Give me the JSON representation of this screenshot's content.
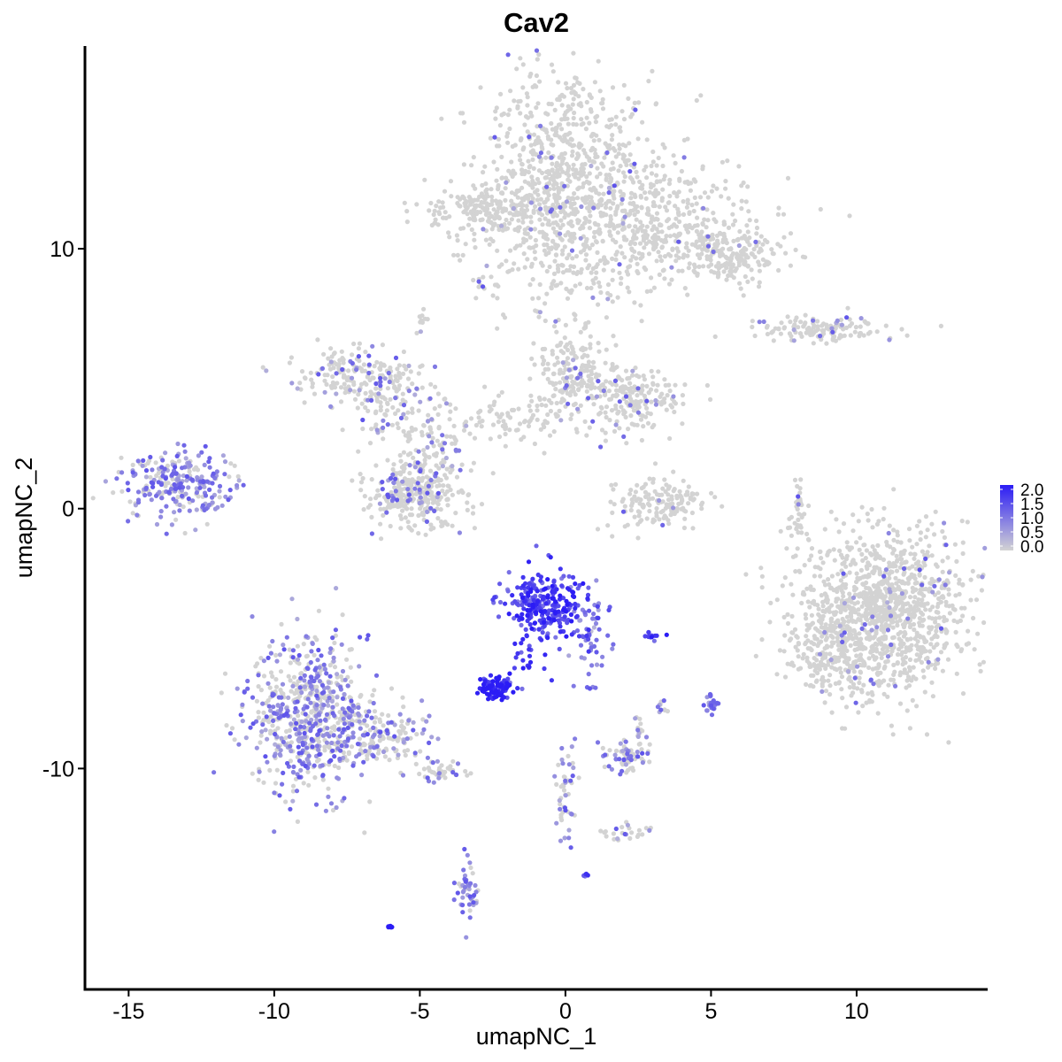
{
  "chart_data": {
    "type": "scatter",
    "title": "Cav2",
    "xlabel": "umapNC_1",
    "ylabel": "umapNC_2",
    "xlim": [
      -16.5,
      14.5
    ],
    "ylim": [
      -18.5,
      17.8
    ],
    "xticks": [
      -15,
      -10,
      -5,
      0,
      5,
      10
    ],
    "xtick_labels": [
      "-15",
      "-10",
      "-5",
      "0",
      "5",
      "10"
    ],
    "yticks": [
      -10,
      0,
      10
    ],
    "ytick_labels": [
      "-10",
      "0",
      "10"
    ],
    "grid": false,
    "legend": {
      "position": "right",
      "type": "colorbar",
      "min": 0.0,
      "max": 2.0,
      "ticks": [
        "2.0",
        "1.5",
        "1.0",
        "0.5",
        "0.0"
      ]
    },
    "color_low": "#d3d3d3",
    "color_high": "#2b1cf5",
    "clusters": [
      {
        "cx": 0.0,
        "cy": 12.5,
        "sx": 1.5,
        "sy": 2.4,
        "n": 900,
        "expr": 0.03
      },
      {
        "cx": 3.0,
        "cy": 11.0,
        "sx": 1.8,
        "sy": 1.2,
        "n": 400,
        "expr": 0.03
      },
      {
        "cx": 5.6,
        "cy": 9.7,
        "sx": 1.0,
        "sy": 0.5,
        "n": 200,
        "expr": 0.02
      },
      {
        "cx": -2.8,
        "cy": 11.5,
        "sx": 1.0,
        "sy": 0.4,
        "n": 180,
        "expr": 0.02
      },
      {
        "cx": 9.0,
        "cy": 6.9,
        "sx": 1.2,
        "sy": 0.25,
        "n": 130,
        "expr": 0.06
      },
      {
        "cx": -7.5,
        "cy": 5.2,
        "sx": 0.9,
        "sy": 0.5,
        "n": 150,
        "expr": 0.15
      },
      {
        "cx": -6.0,
        "cy": 4.2,
        "sx": 0.8,
        "sy": 0.8,
        "n": 120,
        "expr": 0.12
      },
      {
        "cx": 0.2,
        "cy": 5.3,
        "sx": 0.6,
        "sy": 0.8,
        "n": 160,
        "expr": 0.05
      },
      {
        "cx": 2.3,
        "cy": 4.2,
        "sx": 0.9,
        "sy": 0.6,
        "n": 200,
        "expr": 0.06
      },
      {
        "cx": -2.0,
        "cy": 3.5,
        "sx": 1.3,
        "sy": 0.6,
        "n": 100,
        "expr": 0.05
      },
      {
        "cx": -4.5,
        "cy": 2.5,
        "sx": 0.6,
        "sy": 0.9,
        "n": 90,
        "expr": 0.15
      },
      {
        "cx": -5.2,
        "cy": 0.5,
        "sx": 0.8,
        "sy": 0.6,
        "n": 300,
        "expr": 0.12
      },
      {
        "cx": -13.3,
        "cy": 0.9,
        "sx": 1.0,
        "sy": 0.6,
        "n": 260,
        "expr": 0.45
      },
      {
        "cx": 3.2,
        "cy": 0.2,
        "sx": 0.8,
        "sy": 0.5,
        "n": 150,
        "expr": 0.02
      },
      {
        "cx": 8.0,
        "cy": 0.0,
        "sx": 0.15,
        "sy": 0.6,
        "n": 40,
        "expr": 0.05
      },
      {
        "cx": 11.0,
        "cy": -4.0,
        "sx": 1.4,
        "sy": 1.6,
        "n": 1100,
        "expr": 0.03
      },
      {
        "cx": 9.2,
        "cy": -5.2,
        "sx": 0.8,
        "sy": 1.1,
        "n": 220,
        "expr": 0.03
      },
      {
        "cx": -0.7,
        "cy": -3.7,
        "sx": 0.7,
        "sy": 0.6,
        "n": 260,
        "expr": 1.6
      },
      {
        "cx": 0.8,
        "cy": -4.8,
        "sx": 0.3,
        "sy": 0.8,
        "n": 60,
        "expr": 1.0
      },
      {
        "cx": -2.4,
        "cy": -6.9,
        "sx": 0.3,
        "sy": 0.2,
        "n": 90,
        "expr": 1.9
      },
      {
        "cx": -1.2,
        "cy": -5.7,
        "sx": 0.4,
        "sy": 0.5,
        "n": 30,
        "expr": 1.7
      },
      {
        "cx": -8.8,
        "cy": -7.8,
        "sx": 1.0,
        "sy": 1.5,
        "n": 650,
        "expr": 0.35
      },
      {
        "cx": -6.3,
        "cy": -8.8,
        "sx": 1.0,
        "sy": 0.5,
        "n": 160,
        "expr": 0.3
      },
      {
        "cx": -4.4,
        "cy": -10.1,
        "sx": 0.4,
        "sy": 0.2,
        "n": 40,
        "expr": 0.35
      },
      {
        "cx": 2.1,
        "cy": -9.5,
        "sx": 0.4,
        "sy": 0.3,
        "n": 70,
        "expr": 0.3
      },
      {
        "cx": 2.5,
        "cy": -8.7,
        "sx": 0.1,
        "sy": 0.3,
        "n": 15,
        "expr": 0.3
      },
      {
        "cx": 0.0,
        "cy": -11.0,
        "sx": 0.2,
        "sy": 0.9,
        "n": 50,
        "expr": 0.35
      },
      {
        "cx": 2.2,
        "cy": -12.5,
        "sx": 0.4,
        "sy": 0.2,
        "n": 25,
        "expr": 0.3
      },
      {
        "cx": 5.0,
        "cy": -7.5,
        "sx": 0.12,
        "sy": 0.2,
        "n": 25,
        "expr": 0.8
      },
      {
        "cx": 3.3,
        "cy": -7.6,
        "sx": 0.12,
        "sy": 0.15,
        "n": 10,
        "expr": 0.3
      },
      {
        "cx": 2.9,
        "cy": -4.9,
        "sx": 0.15,
        "sy": 0.1,
        "n": 12,
        "expr": 1.5
      },
      {
        "cx": -3.4,
        "cy": -14.7,
        "sx": 0.2,
        "sy": 0.6,
        "n": 45,
        "expr": 0.5
      },
      {
        "cx": -6.0,
        "cy": -16.1,
        "sx": 0.08,
        "sy": 0.05,
        "n": 8,
        "expr": 2.0
      },
      {
        "cx": 0.7,
        "cy": -14.1,
        "sx": 0.05,
        "sy": 0.05,
        "n": 5,
        "expr": 1.5
      },
      {
        "cx": -4.9,
        "cy": 7.3,
        "sx": 0.1,
        "sy": 0.2,
        "n": 10,
        "expr": 0.2
      },
      {
        "cx": -3.0,
        "cy": 8.8,
        "sx": 0.1,
        "sy": 0.1,
        "n": 6,
        "expr": 0.1
      }
    ]
  }
}
